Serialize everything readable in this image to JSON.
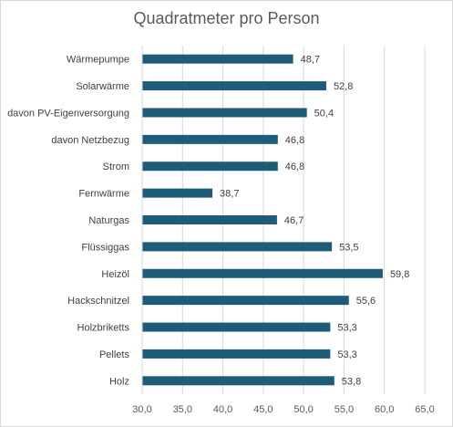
{
  "chart_data": {
    "type": "bar",
    "orientation": "horizontal",
    "title": "Quadratmeter pro Person",
    "xlabel": "",
    "ylabel": "",
    "categories": [
      "Wärmepumpe",
      "Solarwärme",
      "davon PV-Eigenversorgung",
      "davon Netzbezug",
      "Strom",
      "Fernwärme",
      "Naturgas",
      "Flüssiggas",
      "Heizöl",
      "Hackschnitzel",
      "Holzbriketts",
      "Pellets",
      "Holz"
    ],
    "values": [
      48.7,
      52.8,
      50.4,
      46.8,
      46.8,
      38.7,
      46.7,
      53.5,
      59.8,
      55.6,
      53.3,
      53.3,
      53.8
    ],
    "value_labels": [
      "48,7",
      "52,8",
      "50,4",
      "46,8",
      "46,8",
      "38,7",
      "46,7",
      "53,5",
      "59,8",
      "55,6",
      "53,3",
      "53,3",
      "53,8"
    ],
    "xlim": [
      30,
      65
    ],
    "x_ticks": [
      "30,0",
      "35,0",
      "40,0",
      "45,0",
      "50,0",
      "55,0",
      "60,0",
      "65,0"
    ],
    "grid": true,
    "legend": "none",
    "colors": {
      "bar": "#1f5c7a",
      "grid": "#d9d9d9",
      "text": "#404040"
    }
  }
}
